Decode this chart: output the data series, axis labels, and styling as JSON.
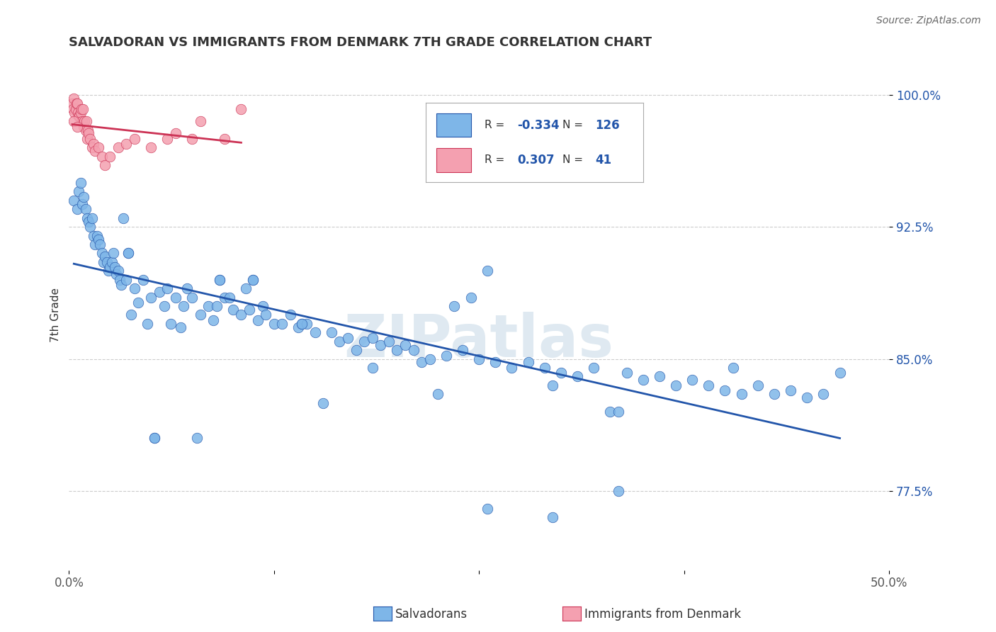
{
  "title": "SALVADORAN VS IMMIGRANTS FROM DENMARK 7TH GRADE CORRELATION CHART",
  "source": "Source: ZipAtlas.com",
  "ylabel": "7th Grade",
  "x_min": 0.0,
  "x_max": 50.0,
  "y_min": 73.0,
  "y_max": 102.0,
  "y_ticks": [
    77.5,
    85.0,
    92.5,
    100.0
  ],
  "y_tick_labels": [
    "77.5%",
    "85.0%",
    "92.5%",
    "100.0%"
  ],
  "blue_color": "#7EB6E8",
  "pink_color": "#F4A0B0",
  "blue_line_color": "#2255AA",
  "pink_line_color": "#CC3355",
  "legend_R1": "-0.334",
  "legend_N1": "126",
  "legend_R2": "0.307",
  "legend_N2": "41",
  "legend_label1": "Salvadorans",
  "legend_label2": "Immigrants from Denmark",
  "watermark": "ZIPatlas",
  "blue_x": [
    0.3,
    0.5,
    0.6,
    0.7,
    0.8,
    0.9,
    1.0,
    1.1,
    1.2,
    1.3,
    1.4,
    1.5,
    1.6,
    1.7,
    1.8,
    1.9,
    2.0,
    2.1,
    2.2,
    2.3,
    2.4,
    2.5,
    2.6,
    2.7,
    2.8,
    2.9,
    3.0,
    3.1,
    3.2,
    3.5,
    3.6,
    3.8,
    4.0,
    4.2,
    4.5,
    4.8,
    5.0,
    5.2,
    5.5,
    5.8,
    6.0,
    6.2,
    6.5,
    6.8,
    7.0,
    7.2,
    7.5,
    7.8,
    8.0,
    8.5,
    8.8,
    9.0,
    9.2,
    9.5,
    9.8,
    10.0,
    10.5,
    10.8,
    11.0,
    11.2,
    11.5,
    11.8,
    12.0,
    12.5,
    13.0,
    13.5,
    14.0,
    14.2,
    14.5,
    15.0,
    15.5,
    16.0,
    16.5,
    17.0,
    17.5,
    18.0,
    18.5,
    19.0,
    19.5,
    20.0,
    20.5,
    21.0,
    21.5,
    22.0,
    22.5,
    23.0,
    23.5,
    24.0,
    24.5,
    25.0,
    25.5,
    26.0,
    27.0,
    28.0,
    29.0,
    29.5,
    30.0,
    31.0,
    32.0,
    33.0,
    33.5,
    34.0,
    35.0,
    36.0,
    37.0,
    38.0,
    39.0,
    40.0,
    41.0,
    42.0,
    43.0,
    44.0,
    45.0,
    46.0,
    3.3,
    5.2,
    9.2,
    11.2,
    14.2,
    3.6,
    18.5,
    33.5,
    29.5,
    25.5,
    40.5,
    47.0
  ],
  "blue_y": [
    94.0,
    93.5,
    94.5,
    95.0,
    93.8,
    94.2,
    93.5,
    93.0,
    92.8,
    92.5,
    93.0,
    92.0,
    91.5,
    92.0,
    91.8,
    91.5,
    91.0,
    90.5,
    90.8,
    90.5,
    90.0,
    90.2,
    90.5,
    91.0,
    90.2,
    89.8,
    90.0,
    89.5,
    89.2,
    89.5,
    91.0,
    87.5,
    89.0,
    88.2,
    89.5,
    87.0,
    88.5,
    80.5,
    88.8,
    88.0,
    89.0,
    87.0,
    88.5,
    86.8,
    88.0,
    89.0,
    88.5,
    80.5,
    87.5,
    88.0,
    87.2,
    88.0,
    89.5,
    88.5,
    88.5,
    87.8,
    87.5,
    89.0,
    87.8,
    89.5,
    87.2,
    88.0,
    87.5,
    87.0,
    87.0,
    87.5,
    86.8,
    87.0,
    87.0,
    86.5,
    82.5,
    86.5,
    86.0,
    86.2,
    85.5,
    86.0,
    86.2,
    85.8,
    86.0,
    85.5,
    85.8,
    85.5,
    84.8,
    85.0,
    83.0,
    85.2,
    88.0,
    85.5,
    88.5,
    85.0,
    90.0,
    84.8,
    84.5,
    84.8,
    84.5,
    83.5,
    84.2,
    84.0,
    84.5,
    82.0,
    77.5,
    84.2,
    83.8,
    84.0,
    83.5,
    83.8,
    83.5,
    83.2,
    83.0,
    83.5,
    83.0,
    83.2,
    82.8,
    83.0,
    93.0,
    80.5,
    89.5,
    89.5,
    87.0,
    91.0,
    84.5,
    82.0,
    76.0,
    76.5,
    84.5,
    84.2
  ],
  "pink_x": [
    0.2,
    0.25,
    0.3,
    0.35,
    0.4,
    0.45,
    0.5,
    0.55,
    0.6,
    0.65,
    0.7,
    0.75,
    0.8,
    0.85,
    0.9,
    0.95,
    1.0,
    1.05,
    1.1,
    1.15,
    1.2,
    1.3,
    1.4,
    1.5,
    1.6,
    1.8,
    2.0,
    2.2,
    2.5,
    3.0,
    3.5,
    4.0,
    5.0,
    6.0,
    6.5,
    7.5,
    8.0,
    9.5,
    10.5,
    0.3,
    0.5
  ],
  "pink_y": [
    99.5,
    99.2,
    99.8,
    99.0,
    99.2,
    99.5,
    99.5,
    99.0,
    98.8,
    98.8,
    99.0,
    99.2,
    98.5,
    99.2,
    98.2,
    98.5,
    98.0,
    98.5,
    97.5,
    98.0,
    97.8,
    97.5,
    97.0,
    97.2,
    96.8,
    97.0,
    96.5,
    96.0,
    96.5,
    97.0,
    97.2,
    97.5,
    97.0,
    97.5,
    97.8,
    97.5,
    98.5,
    97.5,
    99.2,
    98.5,
    98.2
  ]
}
